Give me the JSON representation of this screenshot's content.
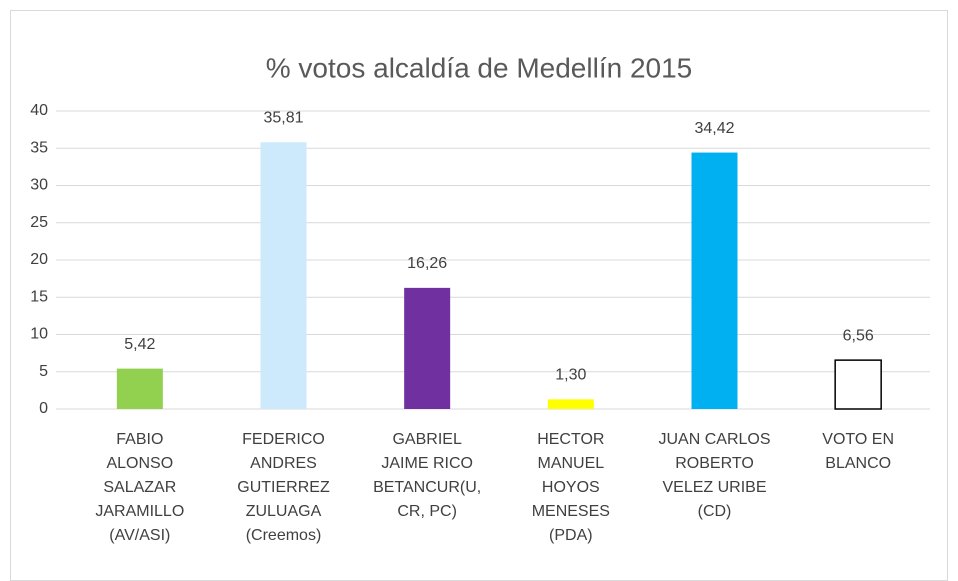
{
  "chart_data": {
    "type": "bar",
    "title": "% votos alcaldía de Medellín 2015",
    "categories": [
      [
        "FABIO",
        "ALONSO",
        "SALAZAR",
        "JARAMILLO",
        "(AV/ASI)"
      ],
      [
        "FEDERICO",
        "ANDRES",
        "GUTIERREZ",
        "ZULUAGA",
        "(Creemos)"
      ],
      [
        "GABRIEL",
        "JAIME RICO",
        "BETANCUR(U,",
        "CR, PC)"
      ],
      [
        "HECTOR",
        "MANUEL",
        "HOYOS",
        "MENESES",
        "(PDA)"
      ],
      [
        "JUAN CARLOS",
        "ROBERTO",
        "VELEZ URIBE",
        "(CD)"
      ],
      [
        "VOTO EN",
        "BLANCO"
      ]
    ],
    "values": [
      5.42,
      35.81,
      16.26,
      1.3,
      34.42,
      6.56
    ],
    "value_labels": [
      "5,42",
      "35,81",
      "16,26",
      "1,30",
      "34,42",
      "6,56"
    ],
    "colors": [
      "#92d050",
      "#cceafb",
      "#7030a0",
      "#ffff00",
      "#00b0f0",
      "#ffffff"
    ],
    "ylim": [
      0,
      40
    ],
    "yticks": [
      0,
      5,
      10,
      15,
      20,
      25,
      30,
      35,
      40
    ],
    "grid": true
  }
}
